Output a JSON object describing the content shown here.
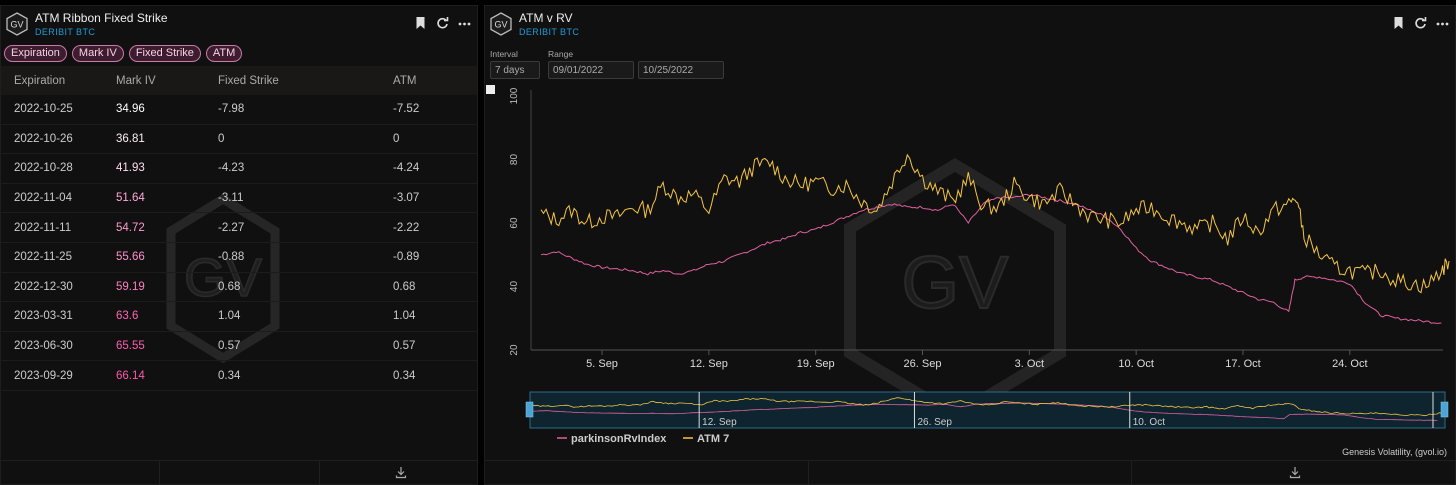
{
  "left_panel": {
    "title": "ATM Ribbon Fixed Strike",
    "subtitle": "DERIBIT BTC",
    "logo_text": "GV",
    "chips": [
      "Expiration",
      "Mark IV",
      "Fixed Strike",
      "ATM"
    ],
    "columns": [
      "Expiration",
      "Mark IV",
      "Fixed Strike",
      "ATM"
    ],
    "rows": [
      {
        "expiration": "2022-10-25",
        "mark_iv": "34.96",
        "fixed_strike": "-7.98",
        "atm": "-7.52",
        "iv_color": "#ffffff"
      },
      {
        "expiration": "2022-10-26",
        "mark_iv": "36.81",
        "fixed_strike": "0",
        "atm": "0",
        "iv_color": "#ffeef7"
      },
      {
        "expiration": "2022-10-28",
        "mark_iv": "41.93",
        "fixed_strike": "-4.23",
        "atm": "-4.24",
        "iv_color": "#ffdcee"
      },
      {
        "expiration": "2022-11-04",
        "mark_iv": "51.64",
        "fixed_strike": "-3.11",
        "atm": "-3.07",
        "iv_color": "#ffa9d6"
      },
      {
        "expiration": "2022-11-11",
        "mark_iv": "54.72",
        "fixed_strike": "-2.27",
        "atm": "-2.22",
        "iv_color": "#ff9acf"
      },
      {
        "expiration": "2022-11-25",
        "mark_iv": "55.66",
        "fixed_strike": "-0.88",
        "atm": "-0.89",
        "iv_color": "#ff92cb"
      },
      {
        "expiration": "2022-12-30",
        "mark_iv": "59.19",
        "fixed_strike": "0.68",
        "atm": "0.68",
        "iv_color": "#ff7dbf"
      },
      {
        "expiration": "2023-03-31",
        "mark_iv": "63.6",
        "fixed_strike": "1.04",
        "atm": "1.04",
        "iv_color": "#ff66b2"
      },
      {
        "expiration": "2023-06-30",
        "mark_iv": "65.55",
        "fixed_strike": "0.57",
        "atm": "0.57",
        "iv_color": "#ff5eae"
      },
      {
        "expiration": "2023-09-29",
        "mark_iv": "66.14",
        "fixed_strike": "0.34",
        "atm": "0.34",
        "iv_color": "#ff58aa"
      }
    ]
  },
  "right_panel": {
    "title": "ATM v RV",
    "subtitle": "DERIBIT BTC",
    "logo_text": "GV",
    "interval_label": "Interval",
    "interval_value": "7 days",
    "range_label": "Range",
    "range_start": "09/01/2022",
    "range_end": "10/25/2022",
    "credit": "Genesis Volatility, (gvol.io)"
  },
  "chart_data": {
    "type": "line",
    "title": "",
    "xlabel": "",
    "ylabel": "",
    "ylim": [
      20,
      100
    ],
    "yticks": [
      "20",
      "40",
      "60",
      "80",
      "100"
    ],
    "xticks": [
      "5. Sep",
      "12. Sep",
      "19. Sep",
      "26. Sep",
      "3. Oct",
      "10. Oct",
      "17. Oct",
      "24. Oct"
    ],
    "navigator_labels": [
      "12. Sep",
      "26. Sep",
      "10. Oct"
    ],
    "x_range_days": [
      0,
      54
    ],
    "legend_position": "bottom-left",
    "series": [
      {
        "name": "parkinsonRvIndex",
        "color": "#e0609f",
        "points": [
          [
            0,
            50
          ],
          [
            1,
            51
          ],
          [
            2,
            49
          ],
          [
            3,
            47
          ],
          [
            4,
            46
          ],
          [
            5,
            45.5
          ],
          [
            6,
            45
          ],
          [
            7,
            44
          ],
          [
            8,
            45
          ],
          [
            9,
            44
          ],
          [
            10,
            45
          ],
          [
            11,
            47
          ],
          [
            12,
            48
          ],
          [
            13,
            50
          ],
          [
            14,
            52
          ],
          [
            15,
            54
          ],
          [
            16,
            55
          ],
          [
            17,
            57
          ],
          [
            18,
            58
          ],
          [
            19,
            60
          ],
          [
            20,
            62
          ],
          [
            21,
            64
          ],
          [
            22,
            65
          ],
          [
            23,
            66
          ],
          [
            24,
            65
          ],
          [
            25,
            65
          ],
          [
            26,
            64
          ],
          [
            27,
            66
          ],
          [
            28,
            60
          ],
          [
            29,
            66
          ],
          [
            30,
            68
          ],
          [
            31,
            68
          ],
          [
            32,
            69
          ],
          [
            33,
            68
          ],
          [
            34,
            67
          ],
          [
            35,
            66
          ],
          [
            36,
            64
          ],
          [
            37,
            62
          ],
          [
            38,
            58
          ],
          [
            39,
            52
          ],
          [
            40,
            48
          ],
          [
            41,
            46
          ],
          [
            42,
            44
          ],
          [
            43,
            43
          ],
          [
            44,
            42
          ],
          [
            45,
            40
          ],
          [
            46,
            38
          ],
          [
            47,
            36
          ],
          [
            48,
            35
          ],
          [
            49,
            32
          ],
          [
            49.4,
            42
          ],
          [
            50,
            43
          ],
          [
            51,
            43
          ],
          [
            52,
            42
          ],
          [
            53,
            41
          ],
          [
            54,
            35
          ],
          [
            55,
            31
          ],
          [
            56,
            30
          ],
          [
            57,
            29.5
          ],
          [
            58,
            29
          ],
          [
            59,
            28.5
          ]
        ]
      },
      {
        "name": "ATM 7",
        "color": "#f5c542",
        "points": [
          [
            0,
            63
          ],
          [
            1,
            61
          ],
          [
            2,
            64
          ],
          [
            3,
            60
          ],
          [
            4,
            62
          ],
          [
            5,
            62
          ],
          [
            6,
            65
          ],
          [
            7,
            64
          ],
          [
            8,
            72
          ],
          [
            9,
            68
          ],
          [
            10,
            69
          ],
          [
            11,
            64
          ],
          [
            12,
            74
          ],
          [
            13,
            73
          ],
          [
            14,
            78
          ],
          [
            15,
            79
          ],
          [
            16,
            74
          ],
          [
            17,
            72
          ],
          [
            18,
            73
          ],
          [
            19,
            71
          ],
          [
            20,
            72
          ],
          [
            21,
            67
          ],
          [
            22,
            64
          ],
          [
            23,
            73
          ],
          [
            24,
            82
          ],
          [
            25,
            74
          ],
          [
            26,
            70
          ],
          [
            27,
            67
          ],
          [
            28,
            74
          ],
          [
            29,
            65
          ],
          [
            30,
            65
          ],
          [
            31,
            72
          ],
          [
            32,
            68
          ],
          [
            33,
            66
          ],
          [
            34,
            70
          ],
          [
            35,
            66
          ],
          [
            36,
            62
          ],
          [
            37,
            61
          ],
          [
            38,
            60
          ],
          [
            39,
            64
          ],
          [
            40,
            65
          ],
          [
            41,
            62
          ],
          [
            42,
            60
          ],
          [
            43,
            58
          ],
          [
            44,
            60
          ],
          [
            45,
            55
          ],
          [
            46,
            62
          ],
          [
            47,
            57
          ],
          [
            48,
            64
          ],
          [
            49,
            66
          ],
          [
            49.5,
            68
          ],
          [
            50,
            56
          ],
          [
            51,
            50
          ],
          [
            52,
            46
          ],
          [
            53,
            45
          ],
          [
            54,
            44
          ],
          [
            55,
            45
          ],
          [
            56,
            42
          ],
          [
            57,
            41
          ],
          [
            58,
            40
          ],
          [
            59,
            45
          ],
          [
            59.5,
            48
          ]
        ]
      }
    ]
  },
  "icons": {
    "bookmark": "bookmark-icon",
    "refresh": "refresh-icon",
    "more": "more-icon",
    "download": "download-icon"
  },
  "colors": {
    "accent_blue": "#1e9bd7",
    "chip_border": "#c97aa5",
    "rv_line": "#e0609f",
    "atm_line": "#f5c542"
  }
}
